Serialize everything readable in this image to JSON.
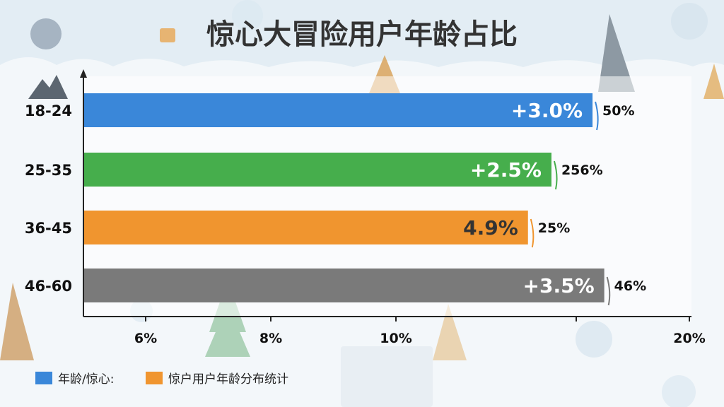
{
  "chart_data": {
    "type": "bar",
    "orientation": "horizontal",
    "title": "惊心大冒险用户年龄占比",
    "xlabel": "",
    "ylabel": "",
    "categories": [
      "18-24",
      "25-35",
      "36-45",
      "46-60"
    ],
    "values": [
      16.7,
      15.3,
      14.5,
      17.1
    ],
    "bar_labels": [
      "+3.0%",
      "+2.5%",
      "4.9%",
      "+3.5%"
    ],
    "side_labels": [
      "50%",
      "256%",
      "25%",
      "46%"
    ],
    "bar_colors": [
      "#3a87d9",
      "#46ae4c",
      "#f0952f",
      "#7a7a7a"
    ],
    "bar_label_colors": [
      "#ffffff",
      "#ffffff",
      "#333333",
      "#ffffff"
    ],
    "x_ticks": [
      {
        "value": 6,
        "label": "6%"
      },
      {
        "value": 8,
        "label": "8%"
      },
      {
        "value": 10,
        "label": "10%"
      },
      {
        "value": 20,
        "label": "20%"
      }
    ],
    "x_tick_labels": [
      "6%",
      "8%",
      "10%",
      "20%"
    ],
    "xlim": [
      4,
      20
    ],
    "grid": false,
    "legend_position": "bottom-left",
    "legend": [
      {
        "label": "年龄/惊心:",
        "color": "#3a87d9"
      },
      {
        "label": "惊户用户年龄分布统计",
        "color": "#f0952f"
      }
    ]
  },
  "colors": {
    "background": "#f3f7fa",
    "plot_background": "#ffffff",
    "axis": "#222222"
  }
}
